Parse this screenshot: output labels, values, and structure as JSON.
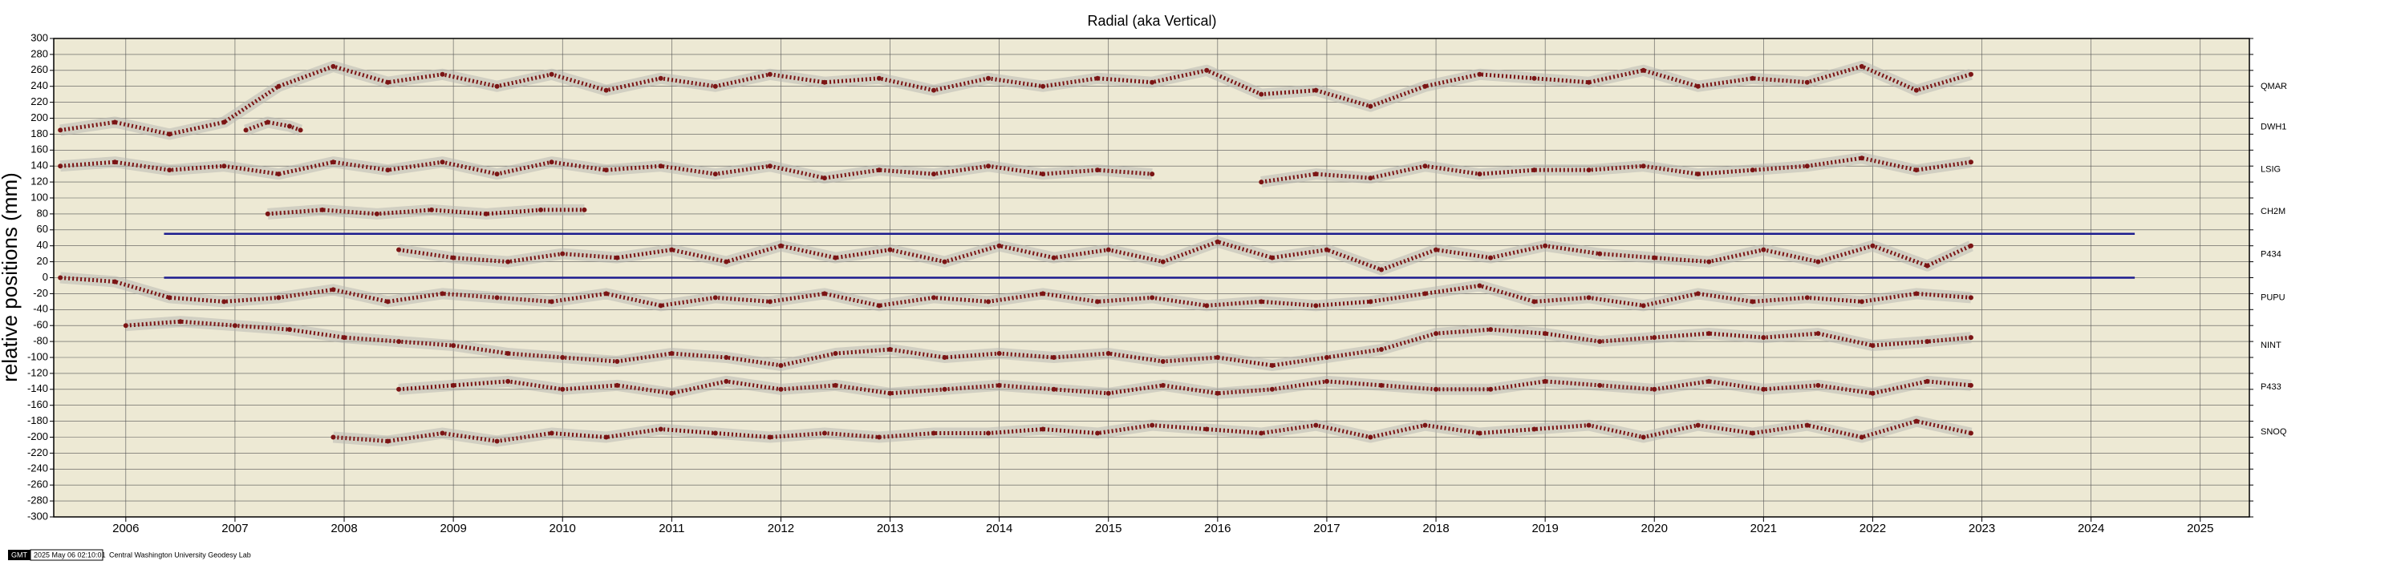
{
  "chart_data": {
    "type": "scatter",
    "title": "Radial (aka Vertical)",
    "y_label": "relative positions (mm)",
    "xlim": [
      2005.34,
      2025.45
    ],
    "ylim": [
      -300,
      300
    ],
    "xticks": [
      2006,
      2007,
      2008,
      2009,
      2010,
      2011,
      2012,
      2013,
      2014,
      2015,
      2016,
      2017,
      2018,
      2019,
      2020,
      2021,
      2022,
      2023,
      2024,
      2025
    ],
    "yticks": [
      -300,
      -280,
      -260,
      -240,
      -220,
      -200,
      -180,
      -160,
      -140,
      -120,
      -100,
      -80,
      -60,
      -40,
      -20,
      0,
      20,
      40,
      60,
      80,
      100,
      120,
      140,
      160,
      180,
      200,
      220,
      240,
      260,
      280,
      300
    ],
    "grid": true,
    "plot_background": "#ede9d4",
    "reference_lines": [
      {
        "y": 55,
        "x": [
          2006.35,
          2024.4
        ],
        "color": "#1c1c8f"
      },
      {
        "y": 0,
        "x": [
          2006.35,
          2024.4
        ],
        "color": "#1c1c8f"
      }
    ],
    "series": [
      {
        "name": "QMAR",
        "color": "#7b1414",
        "x": [
          2005.4,
          2005.9,
          2006.4,
          2006.9,
          2007.4,
          2007.9,
          2008.4,
          2008.9,
          2009.4,
          2009.9,
          2010.4,
          2010.9,
          2011.4,
          2011.9,
          2012.4,
          2012.9,
          2013.4,
          2013.9,
          2014.4,
          2014.9,
          2015.4,
          2015.9,
          2016.4,
          2016.9,
          2017.4,
          2017.9,
          2018.4,
          2018.9,
          2019.4,
          2019.9,
          2020.4,
          2020.9,
          2021.4,
          2021.9,
          2022.4,
          2022.9
        ],
        "values": [
          185,
          195,
          180,
          195,
          240,
          265,
          245,
          255,
          240,
          255,
          235,
          250,
          240,
          255,
          245,
          250,
          235,
          250,
          240,
          250,
          245,
          260,
          230,
          235,
          215,
          240,
          255,
          250,
          245,
          260,
          240,
          250,
          245,
          265,
          235,
          255
        ]
      },
      {
        "name": "DWH1",
        "color": "#7b1414",
        "x": [
          2007.1,
          2007.3,
          2007.5,
          2007.6
        ],
        "values": [
          185,
          195,
          190,
          185
        ]
      },
      {
        "name": "LSIG",
        "color": "#7b1414",
        "x": [
          2005.4,
          2005.9,
          2006.4,
          2006.9,
          2007.4,
          2007.9,
          2008.4,
          2008.9,
          2009.4,
          2009.9,
          2010.4,
          2010.9,
          2011.4,
          2011.9,
          2012.4,
          2012.9,
          2013.4,
          2013.9,
          2014.4,
          2014.9,
          2015.4,
          2015.9,
          2016.4,
          2016.9,
          2017.4,
          2017.9,
          2018.4,
          2018.9,
          2019.4,
          2019.9,
          2020.4,
          2020.9,
          2021.4,
          2021.9,
          2022.4,
          2022.9
        ],
        "values": [
          140,
          145,
          135,
          140,
          130,
          145,
          135,
          145,
          130,
          145,
          135,
          140,
          130,
          140,
          125,
          135,
          130,
          140,
          130,
          135,
          130,
          null,
          120,
          130,
          125,
          140,
          130,
          135,
          135,
          140,
          130,
          135,
          140,
          150,
          135,
          145
        ]
      },
      {
        "name": "CH2M",
        "color": "#7b1414",
        "x": [
          2007.3,
          2007.8,
          2008.3,
          2008.8,
          2009.3,
          2009.8,
          2010.2
        ],
        "values": [
          80,
          85,
          80,
          85,
          80,
          85,
          85
        ]
      },
      {
        "name": "P434",
        "color": "#7b1414",
        "x": [
          2008.5,
          2009,
          2009.5,
          2010,
          2010.5,
          2011,
          2011.5,
          2012,
          2012.5,
          2013,
          2013.5,
          2014,
          2014.5,
          2015,
          2015.5,
          2016,
          2016.5,
          2017,
          2017.5,
          2018,
          2018.5,
          2019,
          2019.5,
          2020,
          2020.5,
          2021,
          2021.5,
          2022,
          2022.5,
          2022.9
        ],
        "values": [
          35,
          25,
          20,
          30,
          25,
          35,
          20,
          40,
          25,
          35,
          20,
          40,
          25,
          35,
          20,
          45,
          25,
          35,
          10,
          35,
          25,
          40,
          30,
          25,
          20,
          35,
          20,
          40,
          15,
          40
        ]
      },
      {
        "name": "PUPU",
        "color": "#7b1414",
        "x": [
          2005.4,
          2005.9,
          2006.4,
          2006.9,
          2007.4,
          2007.9,
          2008.4,
          2008.9,
          2009.4,
          2009.9,
          2010.4,
          2010.9,
          2011.4,
          2011.9,
          2012.4,
          2012.9,
          2013.4,
          2013.9,
          2014.4,
          2014.9,
          2015.4,
          2015.9,
          2016.4,
          2016.9,
          2017.4,
          2017.9,
          2018.4,
          2018.9,
          2019.4,
          2019.9,
          2020.4,
          2020.9,
          2021.4,
          2021.9,
          2022.4,
          2022.9
        ],
        "values": [
          0,
          -5,
          -25,
          -30,
          -25,
          -15,
          -30,
          -20,
          -25,
          -30,
          -20,
          -35,
          -25,
          -30,
          -20,
          -35,
          -25,
          -30,
          -20,
          -30,
          -25,
          -35,
          -30,
          -35,
          -30,
          -20,
          -10,
          -30,
          -25,
          -35,
          -20,
          -30,
          -25,
          -30,
          -20,
          -25
        ]
      },
      {
        "name": "NINT",
        "color": "#7b1414",
        "x": [
          2006,
          2006.5,
          2007,
          2007.5,
          2008,
          2008.5,
          2009,
          2009.5,
          2010,
          2010.5,
          2011,
          2011.5,
          2012,
          2012.5,
          2013,
          2013.5,
          2014,
          2014.5,
          2015,
          2015.5,
          2016,
          2016.5,
          2017,
          2017.5,
          2018,
          2018.5,
          2019,
          2019.5,
          2020,
          2020.5,
          2021,
          2021.5,
          2022,
          2022.5,
          2022.9
        ],
        "values": [
          -60,
          -55,
          -60,
          -65,
          -75,
          -80,
          -85,
          -95,
          -100,
          -105,
          -95,
          -100,
          -110,
          -95,
          -90,
          -100,
          -95,
          -100,
          -95,
          -105,
          -100,
          -110,
          -100,
          -90,
          -70,
          -65,
          -70,
          -80,
          -75,
          -70,
          -75,
          -70,
          -85,
          -80,
          -75
        ]
      },
      {
        "name": "P433",
        "color": "#7b1414",
        "x": [
          2008.5,
          2009,
          2009.5,
          2010,
          2010.5,
          2011,
          2011.5,
          2012,
          2012.5,
          2013,
          2013.5,
          2014,
          2014.5,
          2015,
          2015.5,
          2016,
          2016.5,
          2017,
          2017.5,
          2018,
          2018.5,
          2019,
          2019.5,
          2020,
          2020.5,
          2021,
          2021.5,
          2022,
          2022.5,
          2022.9
        ],
        "values": [
          -140,
          -135,
          -130,
          -140,
          -135,
          -145,
          -130,
          -140,
          -135,
          -145,
          -140,
          -135,
          -140,
          -145,
          -135,
          -145,
          -140,
          -130,
          -135,
          -140,
          -140,
          -130,
          -135,
          -140,
          -130,
          -140,
          -135,
          -145,
          -130,
          -135
        ]
      },
      {
        "name": "SNOQ",
        "color": "#7b1414",
        "x": [
          2007.9,
          2008.4,
          2008.9,
          2009.4,
          2009.9,
          2010.4,
          2010.9,
          2011.4,
          2011.9,
          2012.4,
          2012.9,
          2013.4,
          2013.9,
          2014.4,
          2014.9,
          2015.4,
          2015.9,
          2016.4,
          2016.9,
          2017.4,
          2017.9,
          2018.4,
          2018.9,
          2019.4,
          2019.9,
          2020.4,
          2020.9,
          2021.4,
          2021.9,
          2022.4,
          2022.9
        ],
        "values": [
          -200,
          -205,
          -195,
          -205,
          -195,
          -200,
          -190,
          -195,
          -200,
          -195,
          -200,
          -195,
          -195,
          -190,
          -195,
          -185,
          -190,
          -195,
          -185,
          -200,
          -185,
          -195,
          -190,
          -185,
          -200,
          -185,
          -195,
          -185,
          -200,
          -180,
          -195
        ]
      }
    ],
    "footer": {
      "badge": "GMT",
      "timestamp": "2025 May 06 02:10:01",
      "credit": "Central Washington University Geodesy Lab"
    }
  }
}
